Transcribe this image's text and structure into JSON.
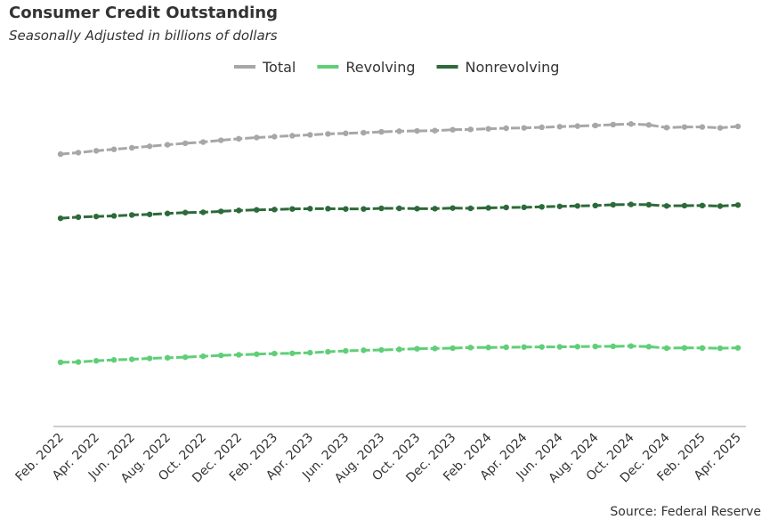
{
  "chart_data": {
    "type": "line",
    "title": "Consumer Credit Outstanding",
    "subtitle": "Seasonally Adjusted in billions of dollars",
    "source": "Source: Federal Reserve",
    "categories": [
      "Feb. 2022",
      null,
      "Apr. 2022",
      null,
      "Jun. 2022",
      null,
      "Aug. 2022",
      null,
      "Oct. 2022",
      null,
      "Dec. 2022",
      null,
      "Feb. 2023",
      null,
      "Apr. 2023",
      null,
      "Jun. 2023",
      null,
      "Aug. 2023",
      null,
      "Oct. 2023",
      null,
      "Dec. 2023",
      null,
      "Feb. 2024",
      null,
      "Apr. 2024",
      null,
      "Jun. 2024",
      null,
      "Aug. 2024",
      null,
      "Oct. 2024",
      null,
      "Dec. 2024",
      null,
      "Feb. 2025",
      null,
      "Apr. 2025"
    ],
    "series": [
      {
        "name": "Total",
        "color": "#a7a7aa",
        "values": [
          4520,
          4545,
          4575,
          4600,
          4625,
          4650,
          4675,
          4700,
          4720,
          4750,
          4775,
          4795,
          4810,
          4825,
          4840,
          4855,
          4865,
          4875,
          4890,
          4900,
          4905,
          4910,
          4925,
          4930,
          4940,
          4950,
          4955,
          4965,
          4975,
          4985,
          4995,
          5010,
          5020,
          5005,
          4960,
          4970,
          4970,
          4955,
          4980
        ]
      },
      {
        "name": "Revolving",
        "color": "#5fcf77",
        "values": [
          1065,
          1070,
          1090,
          1105,
          1115,
          1130,
          1140,
          1150,
          1165,
          1180,
          1190,
          1200,
          1210,
          1215,
          1225,
          1240,
          1255,
          1265,
          1270,
          1280,
          1290,
          1295,
          1300,
          1310,
          1312,
          1315,
          1318,
          1320,
          1322,
          1325,
          1328,
          1330,
          1335,
          1325,
          1300,
          1305,
          1303,
          1298,
          1305
        ]
      },
      {
        "name": "Nonrevolving",
        "color": "#2d6a3a",
        "values": [
          3455,
          3475,
          3485,
          3495,
          3510,
          3520,
          3535,
          3550,
          3555,
          3570,
          3585,
          3595,
          3600,
          3610,
          3615,
          3615,
          3610,
          3610,
          3620,
          3620,
          3615,
          3615,
          3625,
          3620,
          3628,
          3635,
          3637,
          3645,
          3653,
          3660,
          3667,
          3680,
          3685,
          3680,
          3660,
          3665,
          3667,
          3657,
          3675
        ]
      }
    ],
    "ylim": [
      0,
      5600
    ]
  }
}
